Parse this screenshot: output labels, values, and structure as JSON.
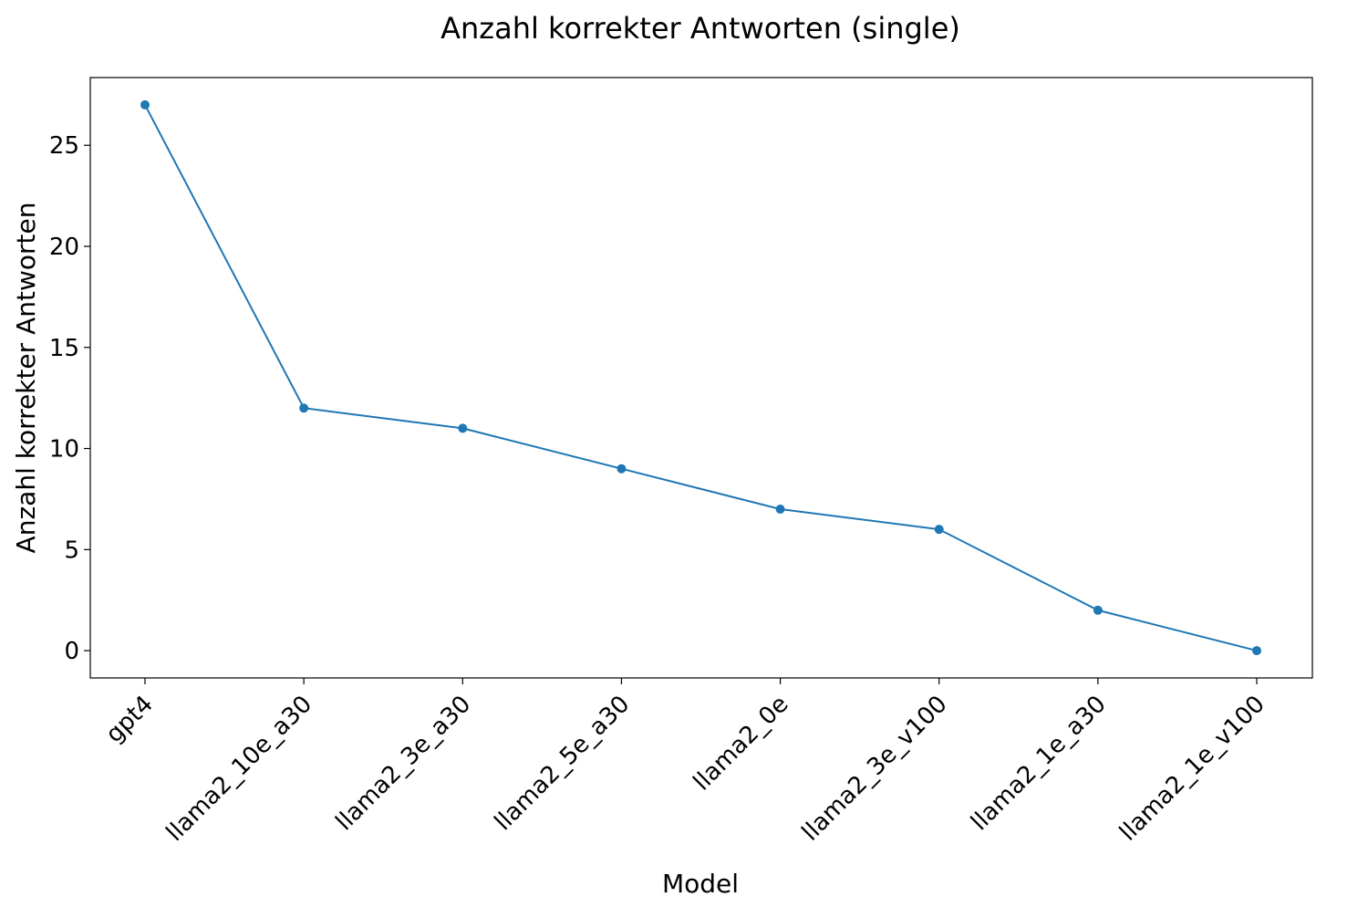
{
  "chart_data": {
    "type": "line",
    "title": "Anzahl korrekter Antworten (single)",
    "xlabel": "Model",
    "ylabel": "Anzahl korrekter Antworten",
    "categories": [
      "gpt4",
      "llama2_10e_a30",
      "llama2_3e_a30",
      "llama2_5e_a30",
      "llama2_0e",
      "llama2_3e_v100",
      "llama2_1e_a30",
      "llama2_1e_v100"
    ],
    "series": [
      {
        "values": [
          27,
          12,
          11,
          9,
          7,
          6,
          2,
          0
        ],
        "color": "#1f77b4"
      }
    ],
    "ylim": [
      -1.35,
      28.35
    ],
    "yticks": [
      0,
      5,
      10,
      15,
      20,
      25
    ],
    "grid": false,
    "legend": "none",
    "x_tick_rotation": 45,
    "marker": "circle"
  }
}
